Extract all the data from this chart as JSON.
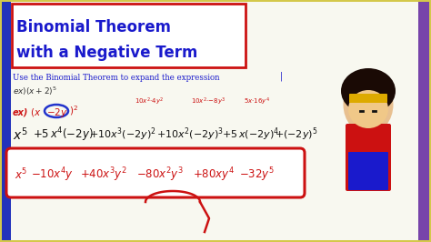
{
  "fig_bg": "#d4c84a",
  "main_bg": "#f8f8f0",
  "left_bar_color": "#2233bb",
  "right_bar_color": "#7744aa",
  "title_box_edge": "#cc1111",
  "title_color": "#1a1acc",
  "title_text1": "Binomial Theorem",
  "title_text2": "with a Negative Term",
  "subtitle": "Use the Binomial Theorem to expand the expression",
  "subtitle_color": "#1a1acc",
  "ex1_color": "#1a1acc",
  "handwriting_color": "#cc1111",
  "dark_color": "#111111",
  "result_color": "#cc1111",
  "circle_color": "#2233cc",
  "annotation_color": "#cc1111"
}
